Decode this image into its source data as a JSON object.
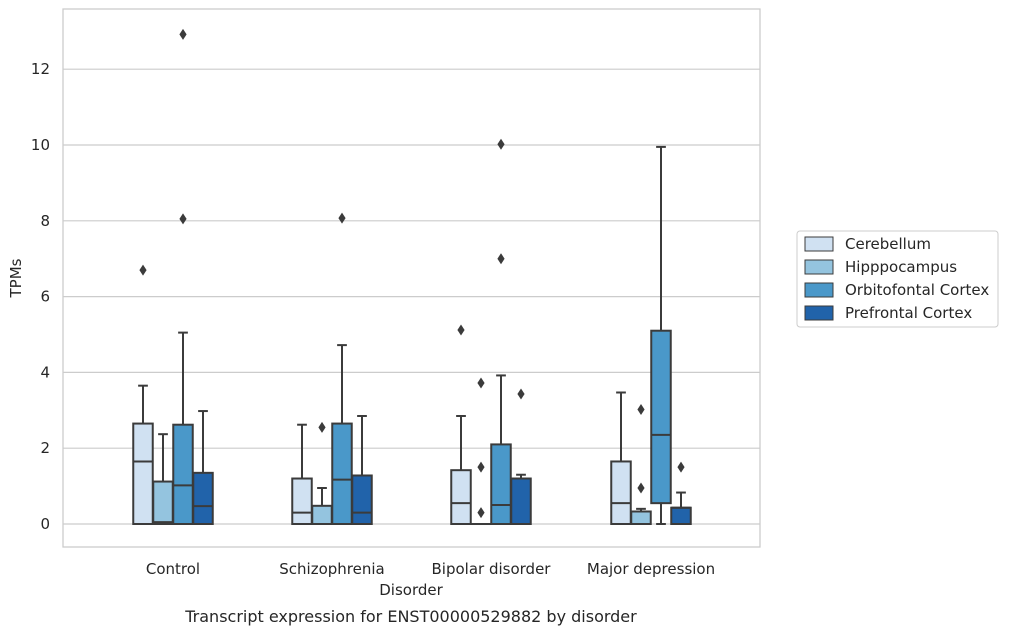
{
  "chart_data": {
    "type": "box",
    "title": "",
    "caption": "Transcript expression for ENST00000529882 by disorder",
    "xlabel": "Disorder",
    "ylabel": "TPMs",
    "ylim": [
      -0.6,
      13.6
    ],
    "yticks": [
      0,
      2,
      4,
      6,
      8,
      10,
      12
    ],
    "grid": true,
    "legend_placement": "right",
    "categories": [
      "Control",
      "Schizophrenia",
      "Bipolar disorder",
      "Major depression"
    ],
    "series": [
      {
        "name": "Cerebellum",
        "color": "#d0e1f2",
        "boxes": [
          {
            "min": 0,
            "q1": 0,
            "median": 1.65,
            "q3": 2.65,
            "max": 3.65,
            "outliers": [
              6.7
            ]
          },
          {
            "min": 0,
            "q1": 0,
            "median": 0.3,
            "q3": 1.2,
            "max": 2.62,
            "outliers": []
          },
          {
            "min": 0,
            "q1": 0,
            "median": 0.55,
            "q3": 1.42,
            "max": 2.85,
            "outliers": [
              5.12
            ]
          },
          {
            "min": 0,
            "q1": 0,
            "median": 0.55,
            "q3": 1.65,
            "max": 3.47,
            "outliers": []
          }
        ]
      },
      {
        "name": "Hipppocampus",
        "color": "#94c4df",
        "boxes": [
          {
            "min": 0,
            "q1": 0,
            "median": 0.05,
            "q3": 1.12,
            "max": 2.37,
            "outliers": []
          },
          {
            "min": 0,
            "q1": 0,
            "median": 0.0,
            "q3": 0.48,
            "max": 0.95,
            "outliers": [
              2.55
            ]
          },
          {
            "min": 0,
            "q1": 0,
            "median": 0.0,
            "q3": 0.0,
            "max": 0.0,
            "outliers": [
              0.3,
              1.5,
              3.72
            ]
          },
          {
            "min": 0,
            "q1": 0,
            "median": 0.0,
            "q3": 0.33,
            "max": 0.4,
            "outliers": [
              0.95,
              3.02
            ]
          }
        ]
      },
      {
        "name": "Orbitofontal Cortex",
        "color": "#4a98c9",
        "boxes": [
          {
            "min": 0,
            "q1": 0,
            "median": 1.02,
            "q3": 2.62,
            "max": 5.05,
            "outliers": [
              8.05,
              12.92
            ]
          },
          {
            "min": 0,
            "q1": 0,
            "median": 1.17,
            "q3": 2.65,
            "max": 4.72,
            "outliers": [
              8.07
            ]
          },
          {
            "min": 0,
            "q1": 0,
            "median": 0.5,
            "q3": 2.1,
            "max": 3.92,
            "outliers": [
              7.0,
              10.02
            ]
          },
          {
            "min": 0,
            "q1": 0.55,
            "median": 2.35,
            "q3": 5.1,
            "max": 9.95,
            "outliers": []
          }
        ]
      },
      {
        "name": "Prefrontal Cortex",
        "color": "#2163aa",
        "boxes": [
          {
            "min": 0,
            "q1": 0,
            "median": 0.47,
            "q3": 1.35,
            "max": 2.98,
            "outliers": []
          },
          {
            "min": 0,
            "q1": 0,
            "median": 0.3,
            "q3": 1.28,
            "max": 2.85,
            "outliers": []
          },
          {
            "min": 0,
            "q1": 0,
            "median": 1.2,
            "q3": 1.2,
            "max": 1.3,
            "outliers": [
              3.43
            ]
          },
          {
            "min": 0,
            "q1": 0,
            "median": 0.43,
            "q3": 0.43,
            "max": 0.83,
            "outliers": [
              1.5
            ]
          }
        ]
      }
    ]
  }
}
